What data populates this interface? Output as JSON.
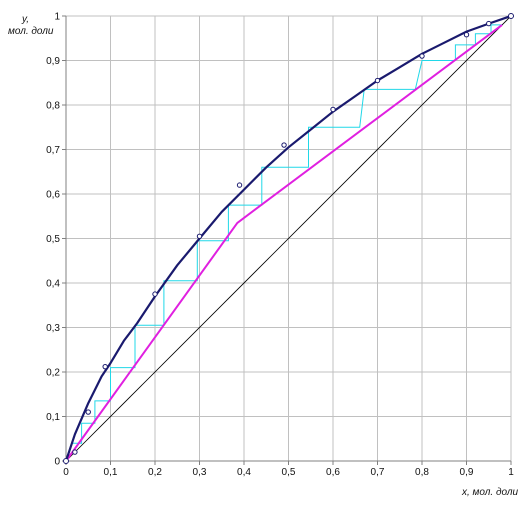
{
  "chart_data": {
    "type": "line",
    "title": "",
    "xlabel": "x, мол. доли",
    "ylabel_line1": "y,",
    "ylabel_line2": "мол. доли",
    "xlim": [
      0,
      1
    ],
    "ylim": [
      0,
      1
    ],
    "grid": true,
    "x_ticks": [
      "0",
      "0,1",
      "0,2",
      "0,3",
      "0,4",
      "0,5",
      "0,6",
      "0,7",
      "0,8",
      "0,9",
      "1"
    ],
    "y_ticks": [
      "0",
      "0,1",
      "0,2",
      "0,3",
      "0,4",
      "0,5",
      "0,6",
      "0,7",
      "0,8",
      "0,9",
      "1"
    ],
    "colors": {
      "equilibrium": "#1a1a6e",
      "operating": "#e020e0",
      "diagonal": "#000000",
      "steps": "#20d8e8",
      "grid": "#c0c0c0",
      "axis": "#808080"
    },
    "equilibrium_curve": {
      "x": [
        0,
        0.02,
        0.05,
        0.08,
        0.1,
        0.13,
        0.16,
        0.2,
        0.25,
        0.3,
        0.35,
        0.4,
        0.45,
        0.5,
        0.55,
        0.6,
        0.65,
        0.7,
        0.75,
        0.8,
        0.85,
        0.9,
        0.95,
        1.0
      ],
      "y": [
        0,
        0.06,
        0.13,
        0.19,
        0.22,
        0.27,
        0.31,
        0.37,
        0.44,
        0.5,
        0.56,
        0.61,
        0.66,
        0.705,
        0.745,
        0.785,
        0.82,
        0.855,
        0.885,
        0.915,
        0.94,
        0.965,
        0.983,
        1.0
      ]
    },
    "experimental_points": {
      "x": [
        0.02,
        0.05,
        0.088,
        0.2,
        0.3,
        0.39,
        0.49,
        0.6,
        0.7,
        0.8,
        0.9,
        0.95
      ],
      "y": [
        0.02,
        0.11,
        0.212,
        0.375,
        0.505,
        0.62,
        0.71,
        0.79,
        0.855,
        0.91,
        0.958,
        0.983
      ]
    },
    "operating_line": {
      "x": [
        0,
        0.385,
        0.98
      ],
      "y": [
        0,
        0.535,
        0.98
      ]
    },
    "diagonal": {
      "x": [
        0,
        1
      ],
      "y": [
        0,
        1
      ]
    },
    "steps": {
      "x": [
        0.98,
        0.955,
        0.955,
        0.92,
        0.92,
        0.875,
        0.875,
        0.8,
        0.8,
        0.785,
        0.785,
        0.67,
        0.67,
        0.66,
        0.66,
        0.545,
        0.545,
        0.545,
        0.545,
        0.44,
        0.44,
        0.365,
        0.365,
        0.295,
        0.295,
        0.22,
        0.22,
        0.155,
        0.155,
        0.1,
        0.1,
        0.065,
        0.065,
        0.035,
        0.035,
        0.015
      ],
      "y": [
        0.98,
        0.98,
        0.96,
        0.96,
        0.935,
        0.935,
        0.9,
        0.9,
        0.9,
        0.835,
        0.835,
        0.835,
        0.835,
        0.75,
        0.75,
        0.75,
        0.75,
        0.66,
        0.66,
        0.66,
        0.575,
        0.575,
        0.495,
        0.495,
        0.405,
        0.405,
        0.305,
        0.305,
        0.21,
        0.21,
        0.135,
        0.135,
        0.085,
        0.085,
        0.04,
        0.04
      ]
    }
  }
}
